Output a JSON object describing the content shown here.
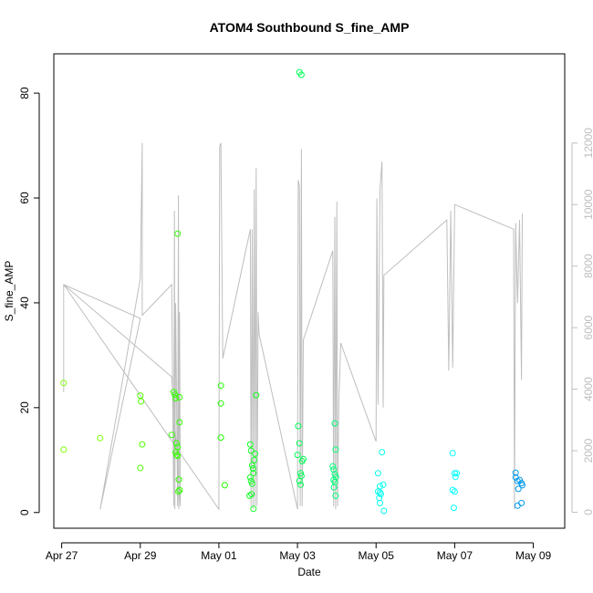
{
  "chart_data": {
    "type": "scatter",
    "title": "ATOM4 Southbound S_fine_AMP",
    "xlabel": "Date",
    "ylabel": "S_fine_AMP",
    "x_ticks": [
      "Apr 27",
      "Apr 29",
      "May 01",
      "May 03",
      "May 05",
      "May 07",
      "May 09"
    ],
    "y_ticks": [
      "0",
      "20",
      "40",
      "60",
      "80"
    ],
    "y2_ticks": [
      "0",
      "2000",
      "4000",
      "6000",
      "8000",
      "10000",
      "12000"
    ],
    "xlim": [
      -0.2,
      12.8
    ],
    "ylim": [
      -3.0,
      87.5
    ],
    "y2lim": [
      -520,
      14900
    ],
    "grid": false,
    "colors": {
      "line": "#bebebe",
      "right_axis": "#bebebe",
      "points": "color gradient green→cyan→blue by date"
    },
    "series": [
      {
        "type": "scatter",
        "values": [
          [
            0.05,
            24.7,
            "#80ff00"
          ],
          [
            0.05,
            12.0,
            "#80ff00"
          ],
          [
            0.98,
            14.2,
            "#80ff00"
          ],
          [
            2.0,
            22.3,
            "#55ff00"
          ],
          [
            2.02,
            21.2,
            "#55ff00"
          ],
          [
            2.05,
            13.0,
            "#55ff00"
          ],
          [
            2.0,
            8.5,
            "#55ff00"
          ],
          [
            2.8,
            14.8,
            "#33ff00"
          ],
          [
            2.85,
            23.0,
            "#33ff00"
          ],
          [
            2.88,
            22.5,
            "#33ff00"
          ],
          [
            2.9,
            21.8,
            "#33ff00"
          ],
          [
            2.9,
            11.5,
            "#33ff00"
          ],
          [
            2.92,
            11.0,
            "#33ff00"
          ],
          [
            2.92,
            13.2,
            "#33ff00"
          ],
          [
            2.95,
            12.5,
            "#33ff00"
          ],
          [
            2.95,
            10.8,
            "#33ff00"
          ],
          [
            2.95,
            53.2,
            "#33ff00"
          ],
          [
            3.0,
            22.0,
            "#33ff00"
          ],
          [
            3.0,
            17.2,
            "#33ff00"
          ],
          [
            2.98,
            6.3,
            "#33ff00"
          ],
          [
            3.0,
            4.3,
            "#33ff00"
          ],
          [
            2.97,
            4.0,
            "#33ff00"
          ],
          [
            4.05,
            24.2,
            "#22ff00"
          ],
          [
            4.05,
            20.8,
            "#22ff00"
          ],
          [
            4.05,
            14.3,
            "#22ff00"
          ],
          [
            4.15,
            5.2,
            "#22ff00"
          ],
          [
            4.8,
            13.0,
            "#11ff22"
          ],
          [
            4.82,
            11.8,
            "#11ff22"
          ],
          [
            4.85,
            9.0,
            "#11ff22"
          ],
          [
            4.87,
            8.4,
            "#11ff22"
          ],
          [
            4.88,
            7.5,
            "#11ff22"
          ],
          [
            4.8,
            6.7,
            "#11ff22"
          ],
          [
            4.82,
            6.0,
            "#11ff22"
          ],
          [
            4.85,
            5.5,
            "#11ff22"
          ],
          [
            4.78,
            3.2,
            "#11ff22"
          ],
          [
            4.83,
            3.5,
            "#11ff22"
          ],
          [
            4.88,
            0.7,
            "#11ff22"
          ],
          [
            4.9,
            10.0,
            "#11ff22"
          ],
          [
            4.92,
            11.2,
            "#11ff22"
          ],
          [
            4.95,
            22.4,
            "#11ff22"
          ],
          [
            6.05,
            84.0,
            "#00ff55"
          ],
          [
            6.1,
            83.5,
            "#00ff55"
          ],
          [
            6.02,
            16.5,
            "#00ff55"
          ],
          [
            6.05,
            13.2,
            "#00ff55"
          ],
          [
            6.0,
            11.0,
            "#00ff55"
          ],
          [
            6.12,
            9.8,
            "#00ff55"
          ],
          [
            6.15,
            10.2,
            "#00ff55"
          ],
          [
            6.08,
            7.5,
            "#00ff55"
          ],
          [
            6.1,
            7.0,
            "#00ff55"
          ],
          [
            6.05,
            6.0,
            "#00ff55"
          ],
          [
            6.08,
            5.3,
            "#00ff55"
          ],
          [
            6.95,
            17.0,
            "#00ff77"
          ],
          [
            6.97,
            12.0,
            "#00ff77"
          ],
          [
            6.9,
            8.8,
            "#00ff77"
          ],
          [
            6.92,
            8.2,
            "#00ff77"
          ],
          [
            6.95,
            7.3,
            "#00ff77"
          ],
          [
            6.98,
            6.8,
            "#00ff77"
          ],
          [
            6.92,
            6.2,
            "#00ff77"
          ],
          [
            6.95,
            5.8,
            "#00ff77"
          ],
          [
            6.93,
            4.8,
            "#00ff77"
          ],
          [
            6.97,
            3.2,
            "#00ff77"
          ],
          [
            8.05,
            7.5,
            "#00ffee"
          ],
          [
            8.15,
            11.5,
            "#00ffee"
          ],
          [
            8.1,
            5.0,
            "#00ffee"
          ],
          [
            8.18,
            5.3,
            "#00ffee"
          ],
          [
            8.05,
            4.0,
            "#00ffee"
          ],
          [
            8.1,
            3.8,
            "#00ffee"
          ],
          [
            8.12,
            3.5,
            "#00ffee"
          ],
          [
            8.08,
            2.8,
            "#00ffee"
          ],
          [
            8.1,
            1.8,
            "#00ffee"
          ],
          [
            8.2,
            0.3,
            "#00ffee"
          ],
          [
            9.95,
            11.3,
            "#00ffff"
          ],
          [
            10.0,
            7.5,
            "#00ffff"
          ],
          [
            10.05,
            7.5,
            "#00ffff"
          ],
          [
            10.02,
            6.8,
            "#00ffff"
          ],
          [
            9.95,
            4.3,
            "#00ffff"
          ],
          [
            10.0,
            4.0,
            "#00ffff"
          ],
          [
            9.98,
            0.9,
            "#00ffff"
          ],
          [
            11.55,
            7.6,
            "#0099ee"
          ],
          [
            11.55,
            6.7,
            "#0099ee"
          ],
          [
            11.6,
            6.0,
            "#0099ee"
          ],
          [
            11.65,
            6.2,
            "#0099ee"
          ],
          [
            11.7,
            5.6,
            "#0099ee"
          ],
          [
            11.72,
            5.2,
            "#0099ee"
          ],
          [
            11.62,
            4.5,
            "#0099ee"
          ],
          [
            11.6,
            1.3,
            "#0099ee"
          ],
          [
            11.7,
            1.8,
            "#0099ee"
          ]
        ]
      },
      {
        "type": "line",
        "axis": "right",
        "values": [
          [
            0.05,
            3900
          ],
          [
            0.05,
            7400
          ],
          [
            2.0,
            6300
          ],
          [
            0.98,
            100
          ],
          [
            2.0,
            7600
          ],
          [
            2.05,
            12000
          ],
          [
            2.05,
            6400
          ],
          [
            2.8,
            7400
          ],
          [
            2.85,
            200
          ],
          [
            2.87,
            9800
          ],
          [
            2.88,
            100
          ],
          [
            2.9,
            6800
          ],
          [
            2.95,
            200
          ],
          [
            2.97,
            10300
          ],
          [
            2.98,
            100
          ],
          [
            3.0,
            6500
          ],
          [
            3.02,
            200
          ],
          [
            2.8,
            4400
          ],
          [
            0.05,
            7400
          ],
          [
            4.0,
            100
          ],
          [
            4.02,
            11900
          ],
          [
            4.05,
            12000
          ],
          [
            4.1,
            5000
          ],
          [
            4.8,
            9200
          ],
          [
            4.82,
            200
          ],
          [
            4.85,
            9200
          ],
          [
            4.87,
            100
          ],
          [
            4.9,
            10500
          ],
          [
            4.92,
            200
          ],
          [
            4.95,
            11200
          ],
          [
            4.97,
            200
          ],
          [
            5.0,
            6500
          ],
          [
            5.02,
            5800
          ],
          [
            6.0,
            100
          ],
          [
            6.02,
            10800
          ],
          [
            6.05,
            10600
          ],
          [
            6.07,
            200
          ],
          [
            6.1,
            11800
          ],
          [
            6.12,
            200
          ],
          [
            6.15,
            5600
          ],
          [
            6.9,
            8500
          ],
          [
            6.92,
            200
          ],
          [
            6.95,
            9600
          ],
          [
            6.97,
            100
          ],
          [
            7.0,
            10100
          ],
          [
            7.02,
            200
          ],
          [
            7.05,
            3500
          ],
          [
            7.1,
            5500
          ],
          [
            8.0,
            2300
          ],
          [
            8.02,
            10200
          ],
          [
            8.05,
            3500
          ],
          [
            8.1,
            10500
          ],
          [
            8.15,
            11400
          ],
          [
            8.18,
            3400
          ],
          [
            8.2,
            7700
          ],
          [
            9.8,
            9500
          ],
          [
            9.85,
            4600
          ],
          [
            9.9,
            9800
          ],
          [
            9.95,
            4700
          ],
          [
            10.0,
            10000
          ],
          [
            11.5,
            9200
          ],
          [
            11.52,
            100
          ],
          [
            11.55,
            9400
          ],
          [
            11.6,
            6800
          ],
          [
            11.65,
            9500
          ],
          [
            11.7,
            4300
          ],
          [
            11.72,
            9700
          ]
        ]
      }
    ]
  }
}
